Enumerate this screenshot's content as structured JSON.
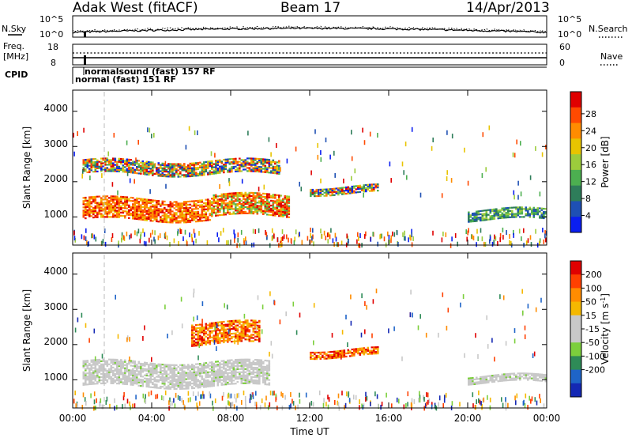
{
  "header": {
    "station": "Adak West (fitACF)",
    "beam": "Beam 17",
    "date": "14/Apr/2013"
  },
  "top_panels": {
    "nsky_label": "N.Sky",
    "nsky_ticks": [
      "10^5",
      "10^0"
    ],
    "nsearch_label": "N.Search",
    "nsearch_ticks": [
      "10^5",
      "10^0"
    ],
    "freq_label": "Freq.",
    "freq_unit": "[MHz]",
    "freq_ticks": [
      "18",
      "8"
    ],
    "nave_label": "Nave",
    "nave_ticks": [
      "60",
      "0"
    ],
    "cpid_label": "CPID",
    "cpid_entries": [
      "normal (fast) 151 RF",
      "normalsound (fast) 157 RF"
    ]
  },
  "chart_data": [
    {
      "type": "heatmap",
      "name": "power",
      "ylabel": "Slant Range [km]",
      "yticks": [
        "1000",
        "2000",
        "3000",
        "4000"
      ],
      "ylim": [
        200,
        4600
      ],
      "xlim": [
        0,
        24
      ],
      "colorbar_label": "Power [dB]",
      "colorbar_ticks": [
        "4",
        "8",
        "12",
        "16",
        "20",
        "24",
        "28"
      ],
      "colorbar_colors": [
        "#0a1ef0",
        "#1e50b4",
        "#2e7d5a",
        "#4caf50",
        "#9ccc3c",
        "#e8c400",
        "#ff8c00",
        "#ff4a00",
        "#e00000"
      ],
      "echo_bands": [
        {
          "t0": 0.5,
          "t1": 7.0,
          "r0": 900,
          "r1": 1500,
          "level": "high"
        },
        {
          "t0": 7.0,
          "t1": 11.0,
          "r0": 1000,
          "r1": 1600,
          "level": "mid"
        },
        {
          "t0": 0.5,
          "t1": 10.5,
          "r0": 2200,
          "r1": 2600,
          "level": "mixed"
        },
        {
          "t0": 12.0,
          "t1": 15.5,
          "r0": 1650,
          "r1": 1850,
          "level": "mixed"
        },
        {
          "t0": 20.0,
          "t1": 24.0,
          "r0": 900,
          "r1": 1200,
          "level": "low"
        }
      ]
    },
    {
      "type": "heatmap",
      "name": "velocity",
      "ylabel": "Slant Range [km]",
      "xlabel": "Time UT",
      "xticks": [
        "00:00",
        "04:00",
        "08:00",
        "12:00",
        "16:00",
        "20:00",
        "00:00"
      ],
      "yticks": [
        "1000",
        "2000",
        "3000",
        "4000"
      ],
      "ylim": [
        200,
        4600
      ],
      "xlim": [
        0,
        24
      ],
      "colorbar_label": "Velocity [m s",
      "colorbar_unit_exp": "-1",
      "colorbar_unit_close": "]",
      "colorbar_ticks": [
        "200",
        "100",
        "50",
        "15",
        "-15",
        "-50",
        "-100",
        "-200"
      ],
      "colorbar_colors": [
        "#1428b4",
        "#1e64c8",
        "#2e8b57",
        "#7ccf3c",
        "#c8c8c8",
        "#c8c8c8",
        "#f5b800",
        "#ff8c00",
        "#ff4000",
        "#e00000"
      ],
      "echo_bands": [
        {
          "t0": 0.5,
          "t1": 10.0,
          "r0": 800,
          "r1": 1500,
          "level": "ground"
        },
        {
          "t0": 6.0,
          "t1": 9.5,
          "r0": 2000,
          "r1": 2600,
          "level": "away"
        },
        {
          "t0": 12.0,
          "t1": 15.5,
          "r0": 1650,
          "r1": 1850,
          "level": "away"
        },
        {
          "t0": 20.0,
          "t1": 24.0,
          "r0": 900,
          "r1": 1100,
          "level": "ground"
        }
      ]
    }
  ]
}
